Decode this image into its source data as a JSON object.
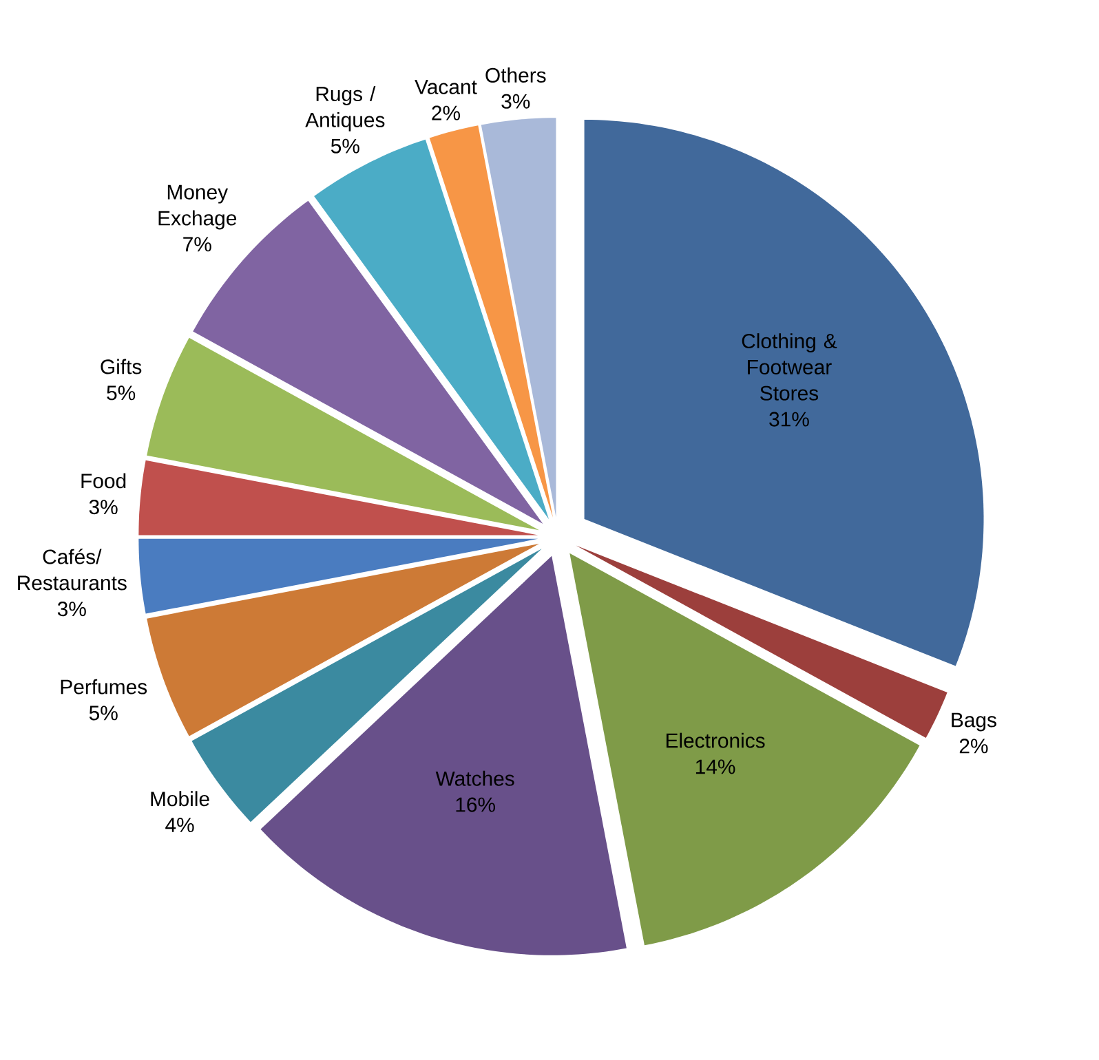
{
  "chart_data": {
    "type": "pie",
    "categories": [
      "Clothing & Footwear Stores",
      "Bags",
      "Electronics",
      "Watches",
      "Mobile",
      "Perfumes",
      "Cafés/ Restaurants",
      "Food",
      "Gifts",
      "Money Exchage",
      "Rugs / Antiques",
      "Vacant",
      "Others"
    ],
    "values": [
      31,
      2,
      14,
      16,
      4,
      5,
      3,
      3,
      5,
      7,
      5,
      2,
      3
    ],
    "colors": [
      "#41699b",
      "#9c3f3c",
      "#7f9b48",
      "#68508a",
      "#3b8aa0",
      "#cd7a36",
      "#4a7cc0",
      "#c0504d",
      "#9bbb59",
      "#8064a2",
      "#4bacc6",
      "#f79646",
      "#a9b9d9"
    ],
    "value_labels": [
      "31%",
      "2%",
      "14%",
      "16%",
      "4%",
      "5%",
      "3%",
      "3%",
      "5%",
      "7%",
      "5%",
      "2%",
      "3%"
    ]
  }
}
